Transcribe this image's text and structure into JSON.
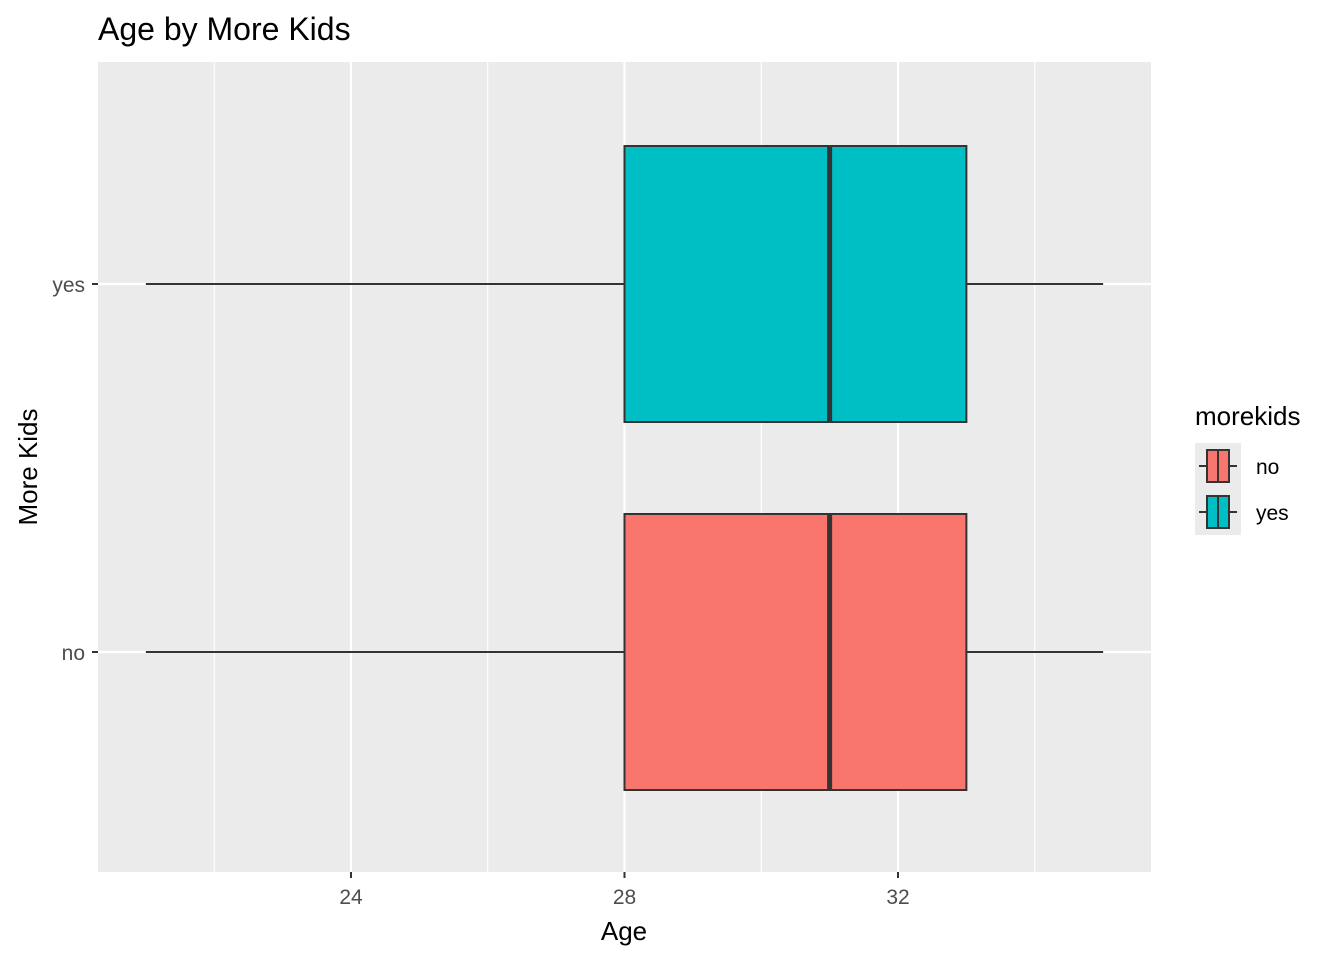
{
  "chart_data": {
    "type": "boxplot",
    "orientation": "horizontal",
    "title": "Age by More Kids",
    "xlabel": "Age",
    "ylabel": "More Kids",
    "xlim": [
      20.3,
      35.7
    ],
    "x_ticks": [
      24,
      28,
      32
    ],
    "x_tick_labels": [
      "24",
      "28",
      "32"
    ],
    "categories": [
      "no",
      "yes"
    ],
    "boxes": [
      {
        "category": "no",
        "whisker_low": 21,
        "q1": 28,
        "median": 31,
        "q3": 33,
        "whisker_high": 35,
        "fill": "#F8766D"
      },
      {
        "category": "yes",
        "whisker_low": 21,
        "q1": 28,
        "median": 31,
        "q3": 33,
        "whisker_high": 35,
        "fill": "#00BFC4"
      }
    ],
    "grid": true,
    "panel_background": "#EBEBEB",
    "grid_color": "#FFFFFF",
    "legend": {
      "title": "morekids",
      "position": "right",
      "entries": [
        {
          "label": "no",
          "fill": "#F8766D"
        },
        {
          "label": "yes",
          "fill": "#00BFC4"
        }
      ]
    }
  }
}
